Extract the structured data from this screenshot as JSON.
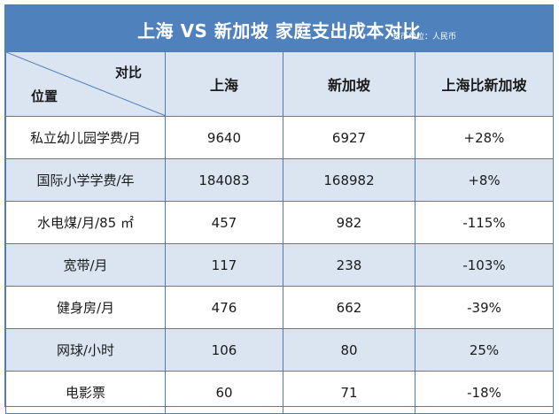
{
  "title": "上海 VS 新加坡  家庭支出成本对比",
  "unit_note": "货币单位：人民币",
  "header": {
    "corner_top": "对比",
    "corner_bottom": "位置",
    "columns": [
      "上海",
      "新加坡",
      "上海比新加坡"
    ]
  },
  "chart_data": {
    "type": "table",
    "title": "上海 VS 新加坡  家庭支出成本对比",
    "columns": [
      "上海",
      "新加坡",
      "上海比新加坡"
    ],
    "rows": [
      {
        "item": "私立幼儿园学费/月",
        "shanghai": "9640",
        "singapore": "6927",
        "diff": "+28%"
      },
      {
        "item": "国际小学学费/年",
        "shanghai": "184083",
        "singapore": "168982",
        "diff": "+8%"
      },
      {
        "item": "水电煤/月/85 ㎡",
        "shanghai": "457",
        "singapore": "982",
        "diff": "-115%"
      },
      {
        "item": "宽带/月",
        "shanghai": "117",
        "singapore": "238",
        "diff": "-103%"
      },
      {
        "item": "健身房/月",
        "shanghai": "476",
        "singapore": "662",
        "diff": "-39%"
      },
      {
        "item": "网球/小时",
        "shanghai": "106",
        "singapore": "80",
        "diff": "25%"
      },
      {
        "item": "电影票",
        "shanghai": "60",
        "singapore": "71",
        "diff": "-18%"
      }
    ]
  },
  "colors": {
    "title_bg": "#4f81bd",
    "alt_row": "#dbe5f1",
    "border": "#4f7cb8"
  }
}
